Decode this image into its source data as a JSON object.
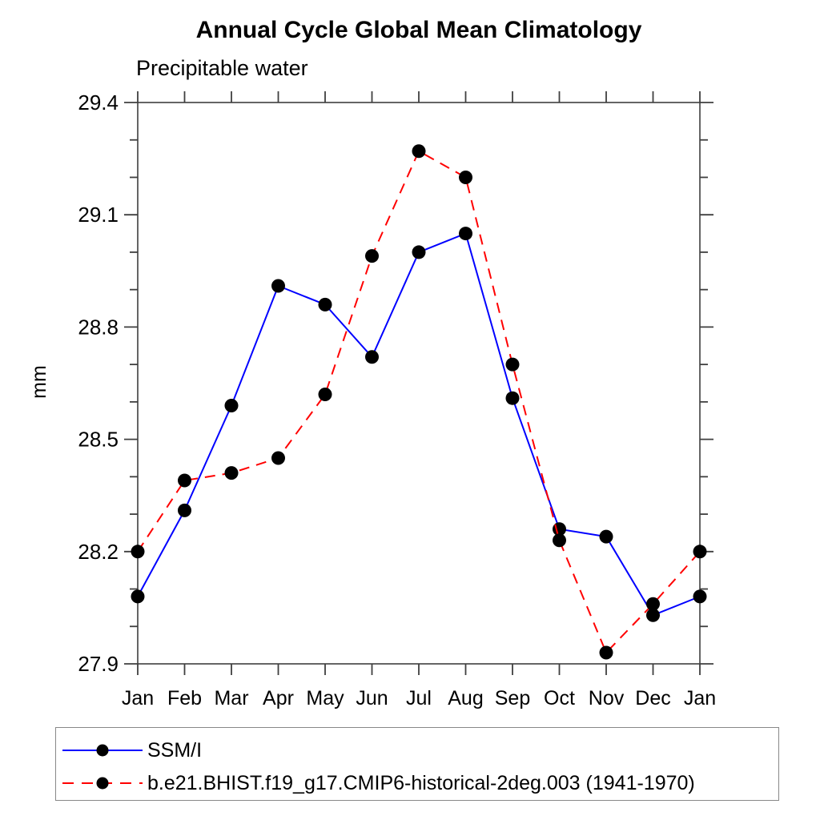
{
  "chart_data": {
    "type": "line",
    "title": "Annual Cycle Global Mean Climatology",
    "subtitle": "Precipitable water",
    "ylabel": "mm",
    "xlabel": "",
    "categories": [
      "Jan",
      "Feb",
      "Mar",
      "Apr",
      "May",
      "Jun",
      "Jul",
      "Aug",
      "Sep",
      "Oct",
      "Nov",
      "Dec",
      "Jan"
    ],
    "ylim": [
      27.9,
      29.4
    ],
    "y_major_ticks": [
      27.9,
      28.2,
      28.5,
      28.8,
      29.1,
      29.4
    ],
    "y_minor_step": 0.1,
    "grid": false,
    "legend_position": "bottom",
    "axis_color": "#3f3f3f",
    "marker_color": "#000000",
    "series": [
      {
        "name": "SSM/I",
        "color": "#0000ff",
        "line_style": "solid",
        "marker": "circle",
        "values": [
          28.08,
          28.31,
          28.59,
          28.91,
          28.86,
          28.72,
          29.0,
          29.05,
          28.61,
          28.26,
          28.24,
          28.03,
          28.08
        ]
      },
      {
        "name": "b.e21.BHIST.f19_g17.CMIP6-historical-2deg.003 (1941-1970)",
        "color": "#ff0000",
        "line_style": "dashed",
        "marker": "circle",
        "values": [
          28.2,
          28.39,
          28.41,
          28.45,
          28.62,
          28.99,
          29.27,
          29.2,
          28.7,
          28.23,
          27.93,
          28.06,
          28.2
        ]
      }
    ]
  }
}
